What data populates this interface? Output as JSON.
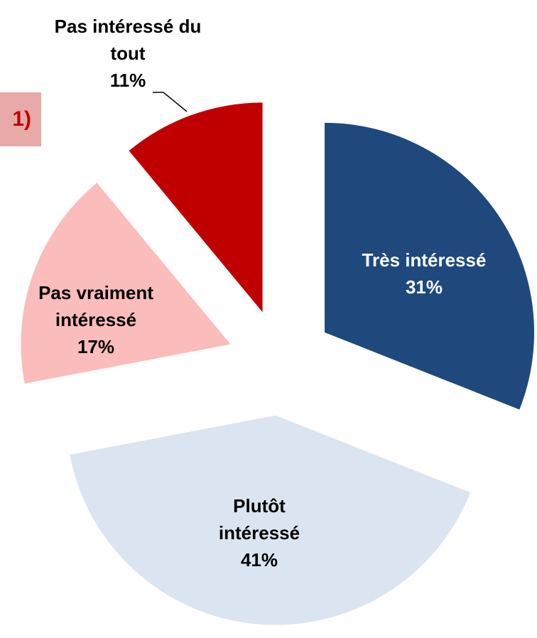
{
  "chart_data": {
    "type": "pie",
    "annotation": "1)",
    "categories": [
      "Très intéressé",
      "Plutôt intéressé",
      "Pas vraiment intéressé",
      "Pas intéressé du tout"
    ],
    "values": [
      31,
      41,
      17,
      11
    ],
    "value_labels": [
      "31%",
      "41%",
      "17%",
      "11%"
    ],
    "colors": [
      "#1f497d",
      "#dbe5f1",
      "#fbbcbc",
      "#c00000"
    ],
    "label_colors": [
      "#ffffff",
      "#000000",
      "#000000",
      "#000000"
    ]
  }
}
